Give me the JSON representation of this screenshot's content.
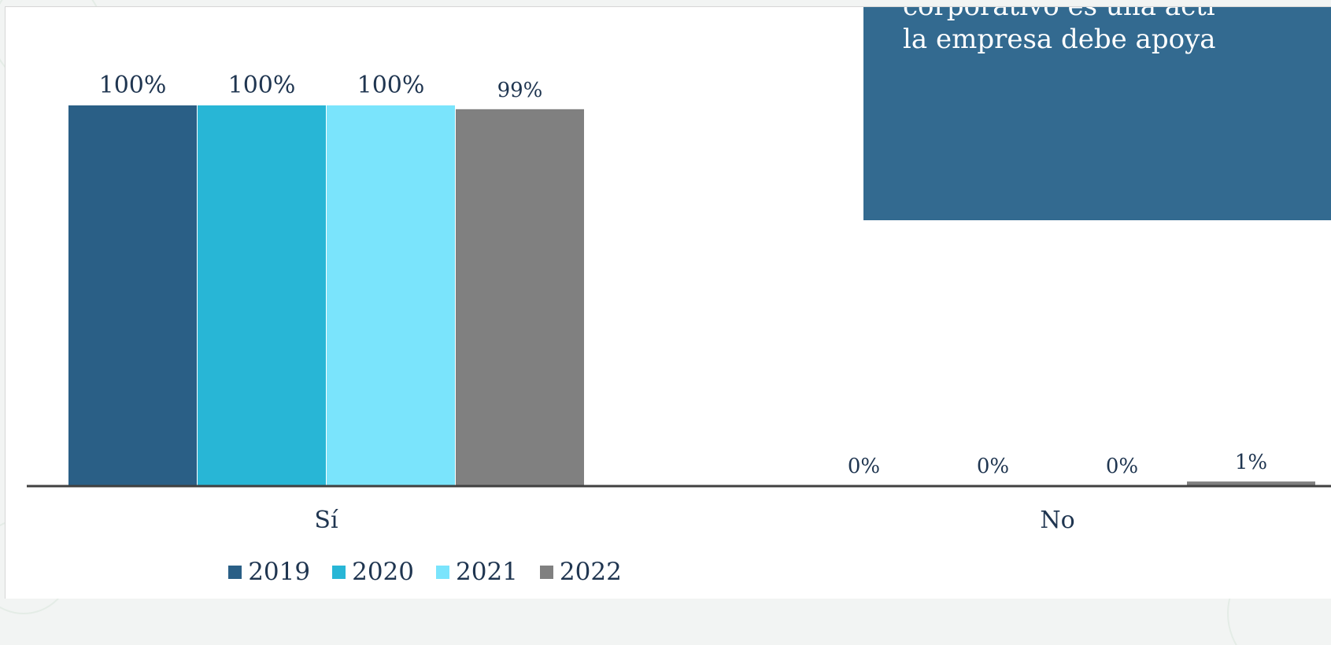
{
  "callout": {
    "text": "corporativo es una acti\nla empresa debe apoya"
  },
  "colors": {
    "2019": "#2a5f86",
    "2020": "#28b6d6",
    "2021": "#7ae4fc",
    "2022": "#808080",
    "axis": "#404040",
    "callout_bg": "#336a90"
  },
  "chart_data": {
    "type": "bar",
    "categories": [
      "Sí",
      "No"
    ],
    "series": [
      {
        "name": "2019",
        "values": [
          100,
          0
        ],
        "labels": [
          "100%",
          "0%"
        ]
      },
      {
        "name": "2020",
        "values": [
          100,
          0
        ],
        "labels": [
          "100%",
          "0%"
        ]
      },
      {
        "name": "2021",
        "values": [
          100,
          0
        ],
        "labels": [
          "100%",
          "0%"
        ]
      },
      {
        "name": "2022",
        "values": [
          99,
          1
        ],
        "labels": [
          "99%",
          "1%"
        ]
      }
    ],
    "ylim": [
      0,
      100
    ],
    "grid": false,
    "legend_position": "bottom"
  }
}
